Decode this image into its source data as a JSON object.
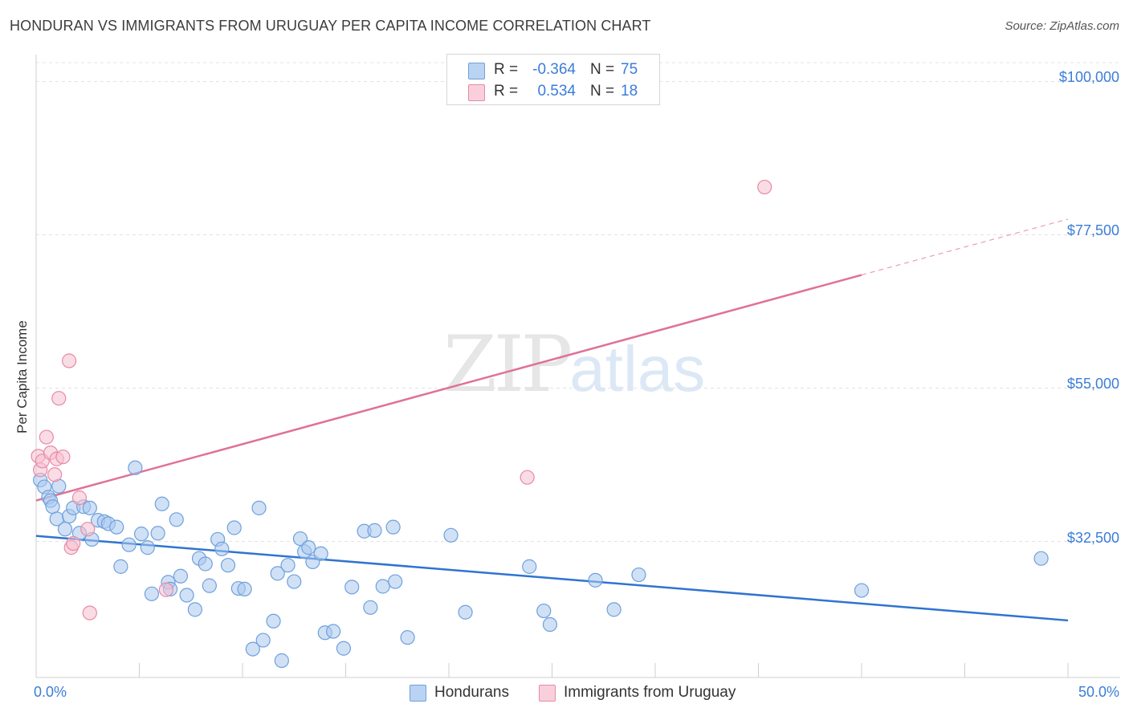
{
  "header": {
    "title": "HONDURAN VS IMMIGRANTS FROM URUGUAY PER CAPITA INCOME CORRELATION CHART",
    "source": "Source: ZipAtlas.com"
  },
  "legend": {
    "hondurans": {
      "r_label": "R =",
      "r_value": "-0.364",
      "n_label": "N =",
      "n_value": "75"
    },
    "uruguay": {
      "r_label": "R =",
      "r_value": "0.534",
      "n_label": "N =",
      "n_value": "18"
    }
  },
  "watermark": {
    "zip": "ZIP",
    "atlas": "atlas"
  },
  "colors": {
    "blue_fill": "#a9c9ef",
    "blue_stroke": "#6fa0dc",
    "blue_line": "#2f74d0",
    "pink_fill": "#f6bfd0",
    "pink_stroke": "#e78aa8",
    "pink_line": "#e0709a",
    "tick_text": "#3b7dd8",
    "grid": "#e3e3e3"
  },
  "chart_data": {
    "type": "scatter",
    "title": "HONDURAN VS IMMIGRANTS FROM URUGUAY PER CAPITA INCOME CORRELATION CHART",
    "xlabel": "",
    "ylabel": "Per Capita Income",
    "xlim": [
      0,
      50
    ],
    "ylim": [
      13000,
      103000
    ],
    "x_tick_labels": [
      "0.0%",
      "50.0%"
    ],
    "y_ticks": [
      32500,
      55000,
      77500,
      100000
    ],
    "y_tick_labels": [
      "$32,500",
      "$55,000",
      "$77,500",
      "$100,000"
    ],
    "grid": true,
    "legend_position": "top-center",
    "series": [
      {
        "name": "Hondurans",
        "color": "#a9c9ef",
        "r": -0.364,
        "n": 75,
        "trend": {
          "x": [
            0,
            50
          ],
          "y": [
            33300,
            20900
          ]
        },
        "points": [
          [
            0.2,
            41500
          ],
          [
            0.4,
            40500
          ],
          [
            0.6,
            39000
          ],
          [
            0.7,
            38500
          ],
          [
            0.8,
            37600
          ],
          [
            1.0,
            35800
          ],
          [
            1.1,
            40600
          ],
          [
            1.4,
            34300
          ],
          [
            1.6,
            36200
          ],
          [
            1.8,
            37400
          ],
          [
            2.1,
            33700
          ],
          [
            2.3,
            37600
          ],
          [
            2.6,
            37400
          ],
          [
            2.7,
            32800
          ],
          [
            3.0,
            35600
          ],
          [
            3.3,
            35400
          ],
          [
            3.5,
            35100
          ],
          [
            3.9,
            34600
          ],
          [
            4.1,
            28800
          ],
          [
            4.5,
            32000
          ],
          [
            4.8,
            43300
          ],
          [
            5.1,
            33600
          ],
          [
            5.4,
            31600
          ],
          [
            5.6,
            24800
          ],
          [
            5.9,
            33700
          ],
          [
            6.1,
            38000
          ],
          [
            6.4,
            26500
          ],
          [
            6.5,
            25500
          ],
          [
            6.8,
            35700
          ],
          [
            7.0,
            27400
          ],
          [
            7.3,
            24600
          ],
          [
            7.7,
            22500
          ],
          [
            7.9,
            30000
          ],
          [
            8.2,
            29200
          ],
          [
            8.4,
            26000
          ],
          [
            8.8,
            32800
          ],
          [
            9.0,
            31400
          ],
          [
            9.3,
            29000
          ],
          [
            9.6,
            34500
          ],
          [
            9.8,
            25600
          ],
          [
            10.1,
            25500
          ],
          [
            10.5,
            16700
          ],
          [
            10.8,
            37400
          ],
          [
            11.0,
            18000
          ],
          [
            11.5,
            20800
          ],
          [
            11.7,
            27800
          ],
          [
            11.9,
            15000
          ],
          [
            12.2,
            29000
          ],
          [
            12.5,
            26600
          ],
          [
            12.8,
            32900
          ],
          [
            13.0,
            31000
          ],
          [
            13.2,
            31600
          ],
          [
            13.4,
            29500
          ],
          [
            13.8,
            30700
          ],
          [
            14.0,
            19100
          ],
          [
            14.4,
            19300
          ],
          [
            14.9,
            16800
          ],
          [
            15.3,
            25800
          ],
          [
            15.9,
            34000
          ],
          [
            16.2,
            22800
          ],
          [
            16.4,
            34100
          ],
          [
            16.8,
            25900
          ],
          [
            17.3,
            34600
          ],
          [
            17.4,
            26600
          ],
          [
            18.0,
            18400
          ],
          [
            20.1,
            33400
          ],
          [
            20.8,
            22100
          ],
          [
            23.9,
            28800
          ],
          [
            24.6,
            22300
          ],
          [
            24.9,
            20300
          ],
          [
            27.1,
            26800
          ],
          [
            28.0,
            22500
          ],
          [
            29.2,
            27600
          ],
          [
            40.0,
            25300
          ],
          [
            48.7,
            30000
          ]
        ]
      },
      {
        "name": "Immigrants from Uruguay",
        "color": "#f6bfd0",
        "r": 0.534,
        "n": 18,
        "trend": {
          "x": [
            0,
            40
          ],
          "y": [
            38500,
            71600
          ]
        },
        "trend_dashed": {
          "x": [
            40,
            50
          ],
          "y": [
            71600,
            79800
          ]
        },
        "points": [
          [
            0.1,
            45000
          ],
          [
            0.2,
            43000
          ],
          [
            0.3,
            44300
          ],
          [
            0.5,
            47800
          ],
          [
            0.7,
            45500
          ],
          [
            0.9,
            42300
          ],
          [
            1.0,
            44600
          ],
          [
            1.1,
            53500
          ],
          [
            1.3,
            44900
          ],
          [
            1.6,
            59000
          ],
          [
            1.7,
            31600
          ],
          [
            1.8,
            32200
          ],
          [
            2.1,
            38900
          ],
          [
            2.5,
            34300
          ],
          [
            2.6,
            22000
          ],
          [
            6.3,
            25400
          ],
          [
            23.8,
            41900
          ],
          [
            35.3,
            84500
          ]
        ]
      }
    ]
  },
  "bottom_legend": {
    "hondurans": "Hondurans",
    "uruguay": "Immigrants from Uruguay"
  }
}
